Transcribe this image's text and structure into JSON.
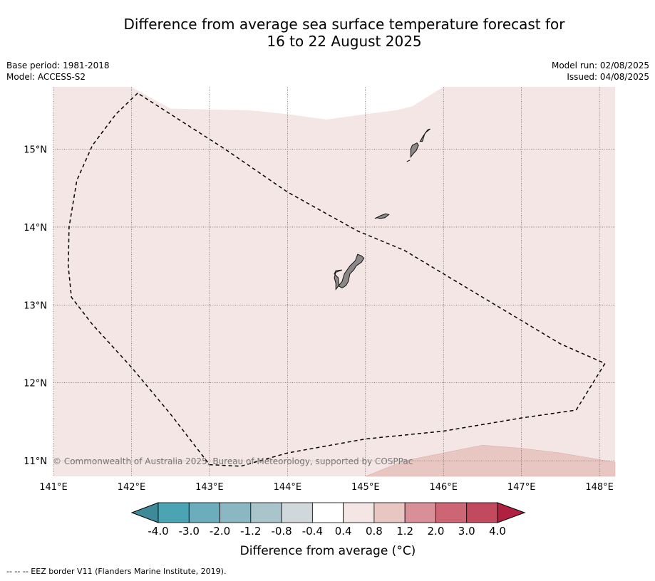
{
  "title_line1": "Difference from average sea surface temperature forecast for",
  "title_line2": "16 to 22 August 2025",
  "meta": {
    "base_period": "Base period: 1981-2018",
    "model": "Model: ACCESS-S2",
    "model_run": "Model run: 02/08/2025",
    "issued": "Issued: 04/08/2025"
  },
  "map": {
    "lon_range": [
      141.0,
      148.2
    ],
    "lat_range": [
      10.8,
      15.8
    ],
    "lon_ticks": [
      "141°E",
      "142°E",
      "143°E",
      "144°E",
      "145°E",
      "146°E",
      "147°E",
      "148°E"
    ],
    "lat_ticks": [
      "11°N",
      "12°N",
      "13°N",
      "14°N",
      "15°N"
    ],
    "background_color": "#f4e6e4",
    "warm_patch_color": "#e8c6c2",
    "land_color": "#8c8888",
    "copyright": "© Commonwealth of Australia 2025, Bureau of Meteorology, supported by COSPPac",
    "eez_border": [
      [
        142.08,
        15.72
      ],
      [
        141.8,
        15.45
      ],
      [
        141.5,
        15.05
      ],
      [
        141.3,
        14.6
      ],
      [
        141.2,
        14.0
      ],
      [
        141.19,
        13.5
      ],
      [
        141.23,
        13.1
      ],
      [
        141.5,
        12.75
      ],
      [
        142.0,
        12.2
      ],
      [
        142.5,
        11.6
      ],
      [
        143.0,
        10.95
      ],
      [
        143.4,
        10.93
      ],
      [
        144.0,
        11.1
      ],
      [
        145.0,
        11.28
      ],
      [
        146.0,
        11.38
      ],
      [
        147.0,
        11.55
      ],
      [
        147.7,
        11.65
      ],
      [
        148.07,
        12.25
      ],
      [
        147.5,
        12.5
      ],
      [
        146.5,
        13.1
      ],
      [
        145.5,
        13.7
      ],
      [
        144.9,
        13.95
      ],
      [
        144.0,
        14.45
      ],
      [
        143.2,
        15.0
      ],
      [
        142.08,
        15.72
      ]
    ]
  },
  "colorbar": {
    "labels": [
      "-4.0",
      "-3.0",
      "-2.0",
      "-1.2",
      "-0.8",
      "-0.4",
      "0.4",
      "0.8",
      "1.2",
      "2.0",
      "3.0",
      "4.0"
    ],
    "colors": [
      "#4aa4b4",
      "#6cadbd",
      "#8bb7c3",
      "#a9c5cb",
      "#d0d8db",
      "#ffffff",
      "#f4e6e4",
      "#e8c6c2",
      "#d88f98",
      "#cc6674",
      "#c14a5e"
    ],
    "under_color": "#3f8a98",
    "over_color": "#b02040",
    "label": "Difference from average ($^\\circ$C)",
    "label_text": "Difference from average (",
    "label_unit": "C)"
  },
  "legend_note": "--  --  -- EEZ border V11 (Flanders Marine Institute, 2019)."
}
